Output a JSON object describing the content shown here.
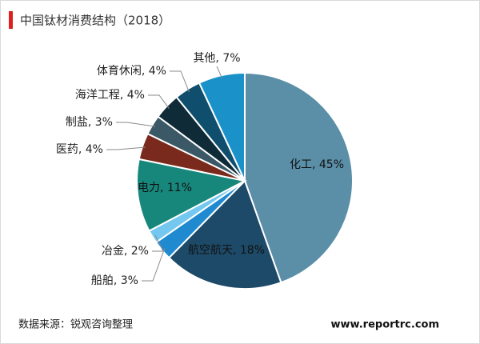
{
  "chart_data": {
    "type": "pie",
    "title": "中国钛材消费结构（2018）",
    "values": [
      45,
      18,
      3,
      2,
      11,
      4,
      3,
      4,
      4,
      7
    ],
    "value_labels": [
      "化工, 45%",
      "航空航天, 18%",
      "船舶, 3%",
      "冶金, 2%",
      "电力, 11%",
      "医药, 4%",
      "制盐, 3%",
      "海洋工程, 4%",
      "体育休闲, 4%",
      "其他, 7%"
    ],
    "colors": [
      "#5b8fa8",
      "#1d4a68",
      "#1f8ad0",
      "#74c8f0",
      "#17877c",
      "#7a2a1c",
      "#3b5866",
      "#102b38",
      "#0f4e6c",
      "#1a92c9"
    ],
    "source": "数据来源：锐观咨询整理",
    "website": "www.reportrc.com"
  }
}
